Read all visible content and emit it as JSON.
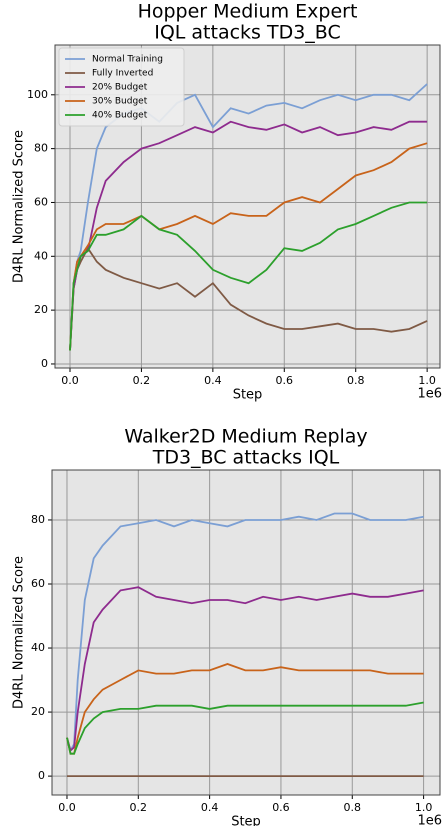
{
  "chart_data": [
    {
      "type": "line",
      "title": [
        "Hopper Medium Expert",
        "IQL attacks TD3_BC"
      ],
      "x_label": "Step",
      "y_label": "D4RL Normalized Score",
      "x_offset_label": "1e6",
      "x": [
        0,
        10000,
        20000,
        30000,
        50000,
        75000,
        100000,
        150000,
        200000,
        250000,
        300000,
        350000,
        400000,
        450000,
        500000,
        550000,
        600000,
        650000,
        700000,
        750000,
        800000,
        850000,
        900000,
        950000,
        1000000
      ],
      "series": [
        {
          "name": "Normal Training",
          "color": "#7b9fd4",
          "values": [
            5,
            30,
            38,
            42,
            60,
            80,
            88,
            93,
            95,
            90,
            97,
            100,
            88,
            95,
            93,
            96,
            97,
            95,
            98,
            100,
            98,
            100,
            100,
            98,
            104
          ]
        },
        {
          "name": "Fully Inverted",
          "color": "#7f5a45",
          "values": [
            5,
            28,
            35,
            38,
            43,
            38,
            35,
            32,
            30,
            28,
            30,
            25,
            30,
            22,
            18,
            15,
            13,
            13,
            14,
            15,
            13,
            13,
            12,
            13,
            16
          ]
        },
        {
          "name": "20% Budget",
          "color": "#8e2b8e",
          "values": [
            5,
            28,
            35,
            40,
            42,
            58,
            68,
            75,
            80,
            82,
            85,
            88,
            86,
            90,
            88,
            87,
            89,
            86,
            88,
            85,
            86,
            88,
            87,
            90,
            90
          ]
        },
        {
          "name": "30% Budget",
          "color": "#c8631a",
          "values": [
            5,
            30,
            38,
            40,
            44,
            50,
            52,
            52,
            55,
            50,
            52,
            55,
            52,
            56,
            55,
            55,
            60,
            62,
            60,
            65,
            70,
            72,
            75,
            80,
            82
          ]
        },
        {
          "name": "40% Budget",
          "color": "#2ca02c",
          "values": [
            5,
            30,
            35,
            40,
            42,
            48,
            48,
            50,
            55,
            50,
            48,
            42,
            35,
            32,
            30,
            35,
            43,
            42,
            45,
            50,
            52,
            55,
            58,
            60,
            60
          ]
        }
      ],
      "xlim": [
        -42000,
        1036000
      ],
      "ylim": [
        -1.5,
        118.5
      ],
      "xticks": [
        {
          "value": 0,
          "label": "0.0"
        },
        {
          "value": 200000,
          "label": "0.2"
        },
        {
          "value": 400000,
          "label": "0.4"
        },
        {
          "value": 600000,
          "label": "0.6"
        },
        {
          "value": 800000,
          "label": "0.8"
        },
        {
          "value": 1000000,
          "label": "1.0"
        }
      ],
      "yticks": [
        0,
        20,
        40,
        60,
        80,
        100
      ],
      "grid": true,
      "legend": "upper left"
    },
    {
      "type": "line",
      "title": [
        "Walker2D Medium Replay",
        "TD3_BC attacks IQL"
      ],
      "x_label": "Step",
      "y_label": "D4RL Normalized Score",
      "x_offset_label": "1e6",
      "x": [
        0,
        10000,
        20000,
        30000,
        50000,
        75000,
        100000,
        150000,
        200000,
        250000,
        300000,
        350000,
        400000,
        450000,
        500000,
        550000,
        600000,
        650000,
        700000,
        750000,
        800000,
        850000,
        900000,
        950000,
        1000000
      ],
      "series": [
        {
          "color": "#7b9fd4",
          "values": [
            12,
            8,
            10,
            30,
            55,
            68,
            72,
            78,
            79,
            80,
            78,
            80,
            79,
            78,
            80,
            80,
            80,
            81,
            80,
            82,
            82,
            80,
            80,
            80,
            81
          ]
        },
        {
          "color": "#8e2b8e",
          "values": [
            12,
            8,
            9,
            20,
            35,
            48,
            52,
            58,
            59,
            56,
            55,
            54,
            55,
            55,
            54,
            56,
            55,
            56,
            55,
            56,
            57,
            56,
            56,
            57,
            58
          ]
        },
        {
          "color": "#c8631a",
          "values": [
            12,
            7,
            7,
            12,
            20,
            24,
            27,
            30,
            33,
            32,
            32,
            33,
            33,
            35,
            33,
            33,
            34,
            33,
            33,
            33,
            33,
            33,
            32,
            32,
            32
          ]
        },
        {
          "color": "#2ca02c",
          "values": [
            12,
            7,
            7,
            10,
            15,
            18,
            20,
            21,
            21,
            22,
            22,
            22,
            21,
            22,
            22,
            22,
            22,
            22,
            22,
            22,
            22,
            22,
            22,
            22,
            23
          ]
        },
        {
          "color": "#7f5a45",
          "values": [
            0,
            0,
            0,
            0,
            0,
            0,
            0,
            0,
            0,
            0,
            0,
            0,
            0,
            0,
            0,
            0,
            0,
            0,
            0,
            0,
            0,
            0,
            0,
            0,
            0
          ]
        }
      ],
      "xlim": [
        -42000,
        1046000
      ],
      "ylim": [
        -5.9,
        95.6
      ],
      "xticks": [
        {
          "value": 0,
          "label": "0.0"
        },
        {
          "value": 200000,
          "label": "0.2"
        },
        {
          "value": 400000,
          "label": "0.4"
        },
        {
          "value": 600000,
          "label": "0.6"
        },
        {
          "value": 800000,
          "label": "0.8"
        },
        {
          "value": 1000000,
          "label": "1.0"
        }
      ],
      "yticks": [
        0,
        20,
        40,
        60,
        80
      ],
      "grid": true
    }
  ]
}
